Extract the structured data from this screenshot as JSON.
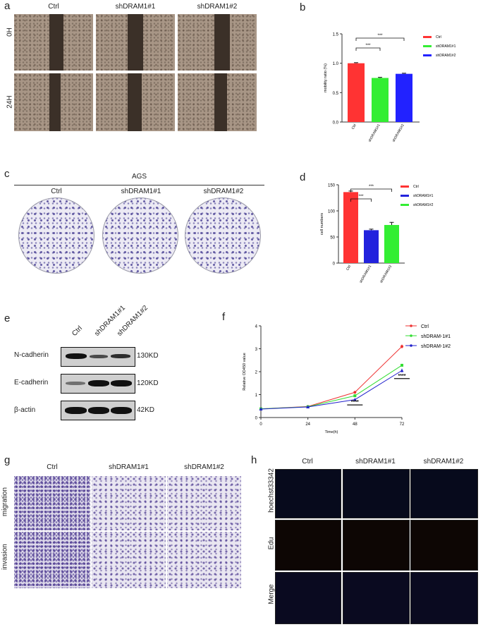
{
  "panel_a": {
    "label": "a",
    "columns": [
      "Ctrl",
      "shDRAM1#1",
      "shDRAM1#2"
    ],
    "rows": [
      "0H",
      "24H"
    ]
  },
  "panel_b": {
    "label": "b",
    "chart_data": {
      "type": "bar",
      "categories": [
        "Ctrl",
        "shDRAM1#1",
        "shDRAM1#2"
      ],
      "values": [
        1.0,
        0.75,
        0.82
      ],
      "errors": [
        0.01,
        0.01,
        0.01
      ],
      "colors": [
        "#ff3333",
        "#33ee33",
        "#2222ff"
      ],
      "ylabel": "mobility ratio (%)",
      "ylim": [
        0,
        1.5
      ],
      "yticks": [
        "0.0",
        "0.5",
        "1.0",
        "1.5"
      ],
      "legend": [
        "Ctrl",
        "shDRAM1#1",
        "shDRAM1#2"
      ],
      "significance": [
        "***",
        "***"
      ]
    }
  },
  "panel_c": {
    "label": "c",
    "header": "AGS",
    "columns": [
      "Ctrl",
      "shDRAM1#1",
      "shDRAM1#2"
    ]
  },
  "panel_d": {
    "label": "d",
    "chart_data": {
      "type": "bar",
      "categories": [
        "Ctrl",
        "shDRAM1#1",
        "shDRAM1#2"
      ],
      "values": [
        136,
        63,
        73
      ],
      "errors": [
        2,
        2,
        5
      ],
      "colors": [
        "#ff3333",
        "#2222dd",
        "#33ee33"
      ],
      "ylabel": "cell numbers",
      "ylim": [
        0,
        150
      ],
      "yticks": [
        "0",
        "50",
        "100",
        "150"
      ],
      "legend": [
        "Ctrl",
        "shDRAM1#1",
        "shDRAM1#2"
      ],
      "significance": [
        "***",
        "***"
      ]
    }
  },
  "panel_e": {
    "label": "e",
    "columns": [
      "Ctrl",
      "shDRAM1#1",
      "shDRAM1#2"
    ],
    "proteins": [
      "N-cadherin",
      "E-cadherin",
      "β-actin"
    ],
    "sizes": [
      "130KD",
      "120KD",
      "42KD"
    ]
  },
  "panel_f": {
    "label": "f",
    "chart_data": {
      "type": "line",
      "x": [
        0,
        24,
        48,
        72
      ],
      "xlabel": "Time(h)",
      "ylabel": "Relative OD450 value",
      "ylim": [
        0,
        4
      ],
      "yticks": [
        "0",
        "1",
        "2",
        "3",
        "4"
      ],
      "xticks": [
        "0",
        "24",
        "48",
        "72"
      ],
      "series": [
        {
          "name": "Ctrl",
          "color": "#ee3333",
          "marker": "circle",
          "values": [
            0.38,
            0.48,
            1.1,
            3.1
          ],
          "errors": [
            0.02,
            0.02,
            0.04,
            0.08
          ]
        },
        {
          "name": "shDRAM-1#1",
          "color": "#33dd33",
          "marker": "square",
          "values": [
            0.38,
            0.47,
            0.95,
            2.28
          ],
          "errors": [
            0.02,
            0.02,
            0.04,
            0.05
          ]
        },
        {
          "name": "shDRAM-1#2",
          "color": "#2222cc",
          "marker": "triangle",
          "values": [
            0.37,
            0.46,
            0.78,
            2.05
          ],
          "errors": [
            0.02,
            0.02,
            0.04,
            0.08
          ]
        }
      ],
      "significance": [
        "****",
        "****"
      ]
    }
  },
  "panel_g": {
    "label": "g",
    "columns": [
      "Ctrl",
      "shDRAM1#1",
      "shDRAM1#2"
    ],
    "rows": [
      "migration",
      "invasion"
    ]
  },
  "panel_h": {
    "label": "h",
    "columns": [
      "Ctrl",
      "shDRAM1#1",
      "shDRAM1#2"
    ],
    "rows": [
      "hoechst33342",
      "Edu",
      "Merge"
    ]
  }
}
